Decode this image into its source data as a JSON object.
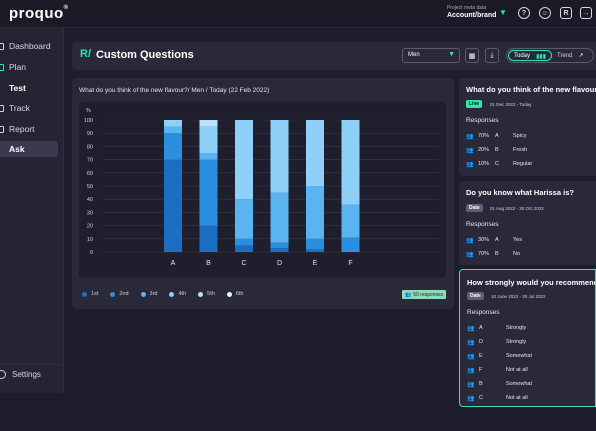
{
  "app": {
    "logo": "proquo",
    "logo_mark": "®"
  },
  "topbar": {
    "meta_label": "Project meta data",
    "meta_value": "Account/brand"
  },
  "sidebar": {
    "items": [
      {
        "label": "Dashboard"
      },
      {
        "label": "Plan"
      },
      {
        "label": "Test"
      },
      {
        "label": "Track"
      },
      {
        "label": "Report"
      },
      {
        "label": "Ask"
      }
    ],
    "settings_label": "Settings"
  },
  "header": {
    "title": "Custom Questions",
    "audience_select": "Men",
    "toggle_today": "Today",
    "toggle_trend": "Trend"
  },
  "chart_panel": {
    "title": "What do you think of the new flavour?/ Men / Today (22 Feb 2022)",
    "responses_badge": "50 responses"
  },
  "chart_data": {
    "type": "bar",
    "stacked": true,
    "ylabel": "%",
    "ylim": [
      0,
      100
    ],
    "yticks": [
      0,
      10,
      20,
      30,
      40,
      50,
      60,
      70,
      80,
      90,
      100
    ],
    "categories": [
      "A",
      "B",
      "C",
      "D",
      "E",
      "F"
    ],
    "series": [
      {
        "name": "1st",
        "color": "#1a6fc4",
        "values": [
          70,
          20,
          5,
          3,
          2,
          0
        ]
      },
      {
        "name": "2nd",
        "color": "#2b8fe0",
        "values": [
          20,
          50,
          5,
          4,
          8,
          11
        ]
      },
      {
        "name": "3rd",
        "color": "#5ab4f0",
        "values": [
          5,
          5,
          30,
          38,
          40,
          25
        ]
      },
      {
        "name": "4th",
        "color": "#8fd0f8",
        "values": [
          5,
          20,
          60,
          55,
          50,
          64
        ]
      },
      {
        "name": "5th",
        "color": "#b9e1fb",
        "values": [
          0,
          5,
          0,
          0,
          0,
          0
        ]
      },
      {
        "name": "6th",
        "color": "#e4f4fe",
        "values": [
          0,
          0,
          0,
          0,
          0,
          0
        ]
      }
    ],
    "legend_position": "bottom-left",
    "grid": true
  },
  "cards": [
    {
      "question": "What do you think of the new flavour?",
      "tag": "Live",
      "date": "01 Dec 2022 - Today",
      "responses_label": "Responses",
      "rows": [
        {
          "pct": "70%",
          "option": "A",
          "text": "Spicy"
        },
        {
          "pct": "20%",
          "option": "B",
          "text": "Fresh"
        },
        {
          "pct": "10%",
          "option": "C",
          "text": "Regular"
        }
      ]
    },
    {
      "question": "Do you know what Harissa is?",
      "tag": "Date",
      "date": "01 Aug 2022 - 30 Oct 2022",
      "responses_label": "Responses",
      "rows": [
        {
          "pct": "30%",
          "option": "A",
          "text": "Yes"
        },
        {
          "pct": "70%",
          "option": "B",
          "text": "No"
        }
      ]
    },
    {
      "question": "How strongly would you recommend?",
      "tag": "Date",
      "date": "10 June 2022 - 30 Jul 2022",
      "responses_label": "Responses",
      "rows": [
        {
          "option": "A",
          "text": "Strongly"
        },
        {
          "option": "D",
          "text": "Strongly"
        },
        {
          "option": "E",
          "text": "Somewhat"
        },
        {
          "option": "F",
          "text": "Not at all"
        },
        {
          "option": "B",
          "text": "Somewhat"
        },
        {
          "option": "C",
          "text": "Not at all"
        }
      ]
    }
  ],
  "colors": {
    "accent": "#2ee6a6",
    "background": "#1e1d2b",
    "panel": "#2a2939"
  }
}
